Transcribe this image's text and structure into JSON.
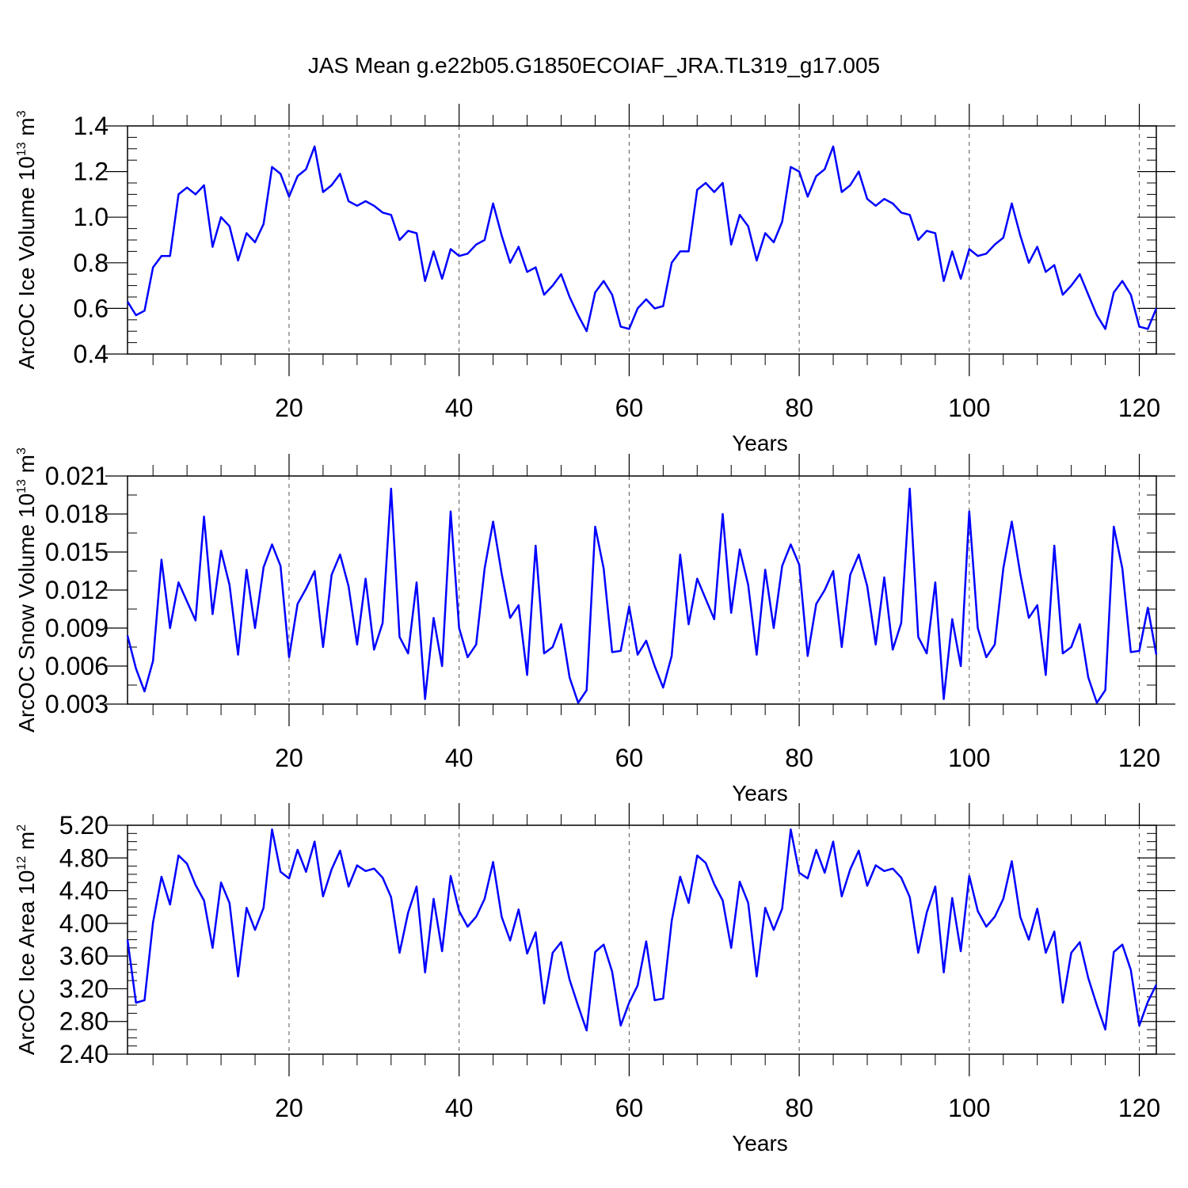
{
  "title": "JAS Mean g.e22b05.G1850ECOIAF_JRA.TL319_g17.005",
  "line_color": "#0000ff",
  "chart_data": [
    {
      "type": "line",
      "ylabel_main": "ArcOC Ice Volume 10",
      "ylabel_exp": "13",
      "ylabel_unit": " m",
      "ylabel_unit_exp": "3",
      "xlabel": "Years",
      "xlim": [
        1,
        122
      ],
      "ylim": [
        0.4,
        1.4
      ],
      "x_ticks": [
        20,
        40,
        60,
        80,
        100,
        120
      ],
      "x_tick_labels": [
        "20",
        "40",
        "60",
        "80",
        "100",
        "120"
      ],
      "y_ticks": [
        0.4,
        0.6,
        0.8,
        1.0,
        1.2,
        1.4
      ],
      "y_tick_labels": [
        "0.4",
        "0.6",
        "0.8",
        "1.0",
        "1.2",
        "1.4"
      ],
      "x_minor_step": 4,
      "y_minor_step": 0.05,
      "dashed_gridlines_x": [
        20,
        40,
        60,
        80,
        100,
        120
      ],
      "values": [
        0.63,
        0.57,
        0.59,
        0.78,
        0.83,
        0.83,
        1.1,
        1.13,
        1.1,
        1.14,
        0.87,
        1.0,
        0.96,
        0.81,
        0.93,
        0.89,
        0.97,
        1.22,
        1.19,
        1.09,
        1.18,
        1.21,
        1.31,
        1.11,
        1.14,
        1.19,
        1.07,
        1.05,
        1.07,
        1.05,
        1.02,
        1.01,
        0.9,
        0.94,
        0.93,
        0.72,
        0.85,
        0.73,
        0.86,
        0.83,
        0.84,
        0.88,
        0.9,
        1.06,
        0.92,
        0.8,
        0.87,
        0.76,
        0.78,
        0.66,
        0.7,
        0.75,
        0.65,
        0.57,
        0.5,
        0.67,
        0.72,
        0.66,
        0.52,
        0.51,
        0.6,
        0.64,
        0.6,
        0.61,
        0.8,
        0.85,
        0.85,
        1.12,
        1.15,
        1.11,
        1.15,
        0.88,
        1.01,
        0.96,
        0.81,
        0.93,
        0.89,
        0.98,
        1.22,
        1.2,
        1.09,
        1.18,
        1.21,
        1.31,
        1.11,
        1.14,
        1.2,
        1.08,
        1.05,
        1.08,
        1.06,
        1.02,
        1.01,
        0.9,
        0.94,
        0.93,
        0.72,
        0.85,
        0.73,
        0.86,
        0.83,
        0.84,
        0.88,
        0.91,
        1.06,
        0.92,
        0.8,
        0.87,
        0.76,
        0.79,
        0.66,
        0.7,
        0.75,
        0.66,
        0.57,
        0.51,
        0.67,
        0.72,
        0.66,
        0.52,
        0.51,
        0.6
      ]
    },
    {
      "type": "line",
      "ylabel_main": "ArcOC Snow Volume 10",
      "ylabel_exp": "13",
      "ylabel_unit": " m",
      "ylabel_unit_exp": "3",
      "xlabel": "Years",
      "xlim": [
        1,
        122
      ],
      "ylim": [
        0.003,
        0.021
      ],
      "x_ticks": [
        20,
        40,
        60,
        80,
        100,
        120
      ],
      "x_tick_labels": [
        "20",
        "40",
        "60",
        "80",
        "100",
        "120"
      ],
      "y_ticks": [
        0.003,
        0.006,
        0.009,
        0.012,
        0.015,
        0.018,
        0.021
      ],
      "y_tick_labels": [
        "0.003",
        "0.006",
        "0.009",
        "0.012",
        "0.015",
        "0.018",
        "0.021"
      ],
      "x_minor_step": 4,
      "y_minor_step": 0.0015,
      "dashed_gridlines_x": [
        20,
        40,
        60,
        80,
        100,
        120
      ],
      "values": [
        0.0084,
        0.0058,
        0.004,
        0.0064,
        0.0144,
        0.009,
        0.0126,
        0.0111,
        0.0096,
        0.0178,
        0.0101,
        0.0151,
        0.0124,
        0.0069,
        0.0136,
        0.009,
        0.0138,
        0.0156,
        0.0139,
        0.0067,
        0.0109,
        0.0121,
        0.0135,
        0.0075,
        0.0132,
        0.0148,
        0.0123,
        0.0077,
        0.0129,
        0.0073,
        0.0094,
        0.02,
        0.0083,
        0.007,
        0.0126,
        0.0034,
        0.0098,
        0.006,
        0.0182,
        0.009,
        0.0067,
        0.0077,
        0.0137,
        0.0174,
        0.0133,
        0.0098,
        0.0108,
        0.0053,
        0.0155,
        0.007,
        0.0075,
        0.0093,
        0.0051,
        0.0031,
        0.0041,
        0.017,
        0.0137,
        0.0071,
        0.0072,
        0.0107,
        0.0069,
        0.008,
        0.006,
        0.0043,
        0.0068,
        0.0148,
        0.0093,
        0.0129,
        0.0113,
        0.0097,
        0.018,
        0.0102,
        0.0152,
        0.0124,
        0.0069,
        0.0136,
        0.009,
        0.0139,
        0.0156,
        0.014,
        0.0068,
        0.0109,
        0.012,
        0.0135,
        0.0075,
        0.0132,
        0.0148,
        0.0123,
        0.0077,
        0.013,
        0.0073,
        0.0094,
        0.02,
        0.0083,
        0.007,
        0.0126,
        0.0034,
        0.0097,
        0.006,
        0.0182,
        0.009,
        0.0067,
        0.0077,
        0.0137,
        0.0174,
        0.0133,
        0.0098,
        0.0108,
        0.0053,
        0.0155,
        0.007,
        0.0075,
        0.0093,
        0.0051,
        0.0031,
        0.0041,
        0.017,
        0.0137,
        0.0071,
        0.0072,
        0.0106,
        0.0069
      ]
    },
    {
      "type": "line",
      "ylabel_main": "ArcOC Ice Area 10",
      "ylabel_exp": "12",
      "ylabel_unit": " m",
      "ylabel_unit_exp": "2",
      "xlabel": "Years",
      "xlim": [
        1,
        122
      ],
      "ylim": [
        2.4,
        5.2
      ],
      "x_ticks": [
        20,
        40,
        60,
        80,
        100,
        120
      ],
      "x_tick_labels": [
        "20",
        "40",
        "60",
        "80",
        "100",
        "120"
      ],
      "y_ticks": [
        2.4,
        2.8,
        3.2,
        3.6,
        4.0,
        4.4,
        4.8,
        5.2
      ],
      "y_tick_labels": [
        "2.40",
        "2.80",
        "3.20",
        "3.60",
        "4.00",
        "4.40",
        "4.80",
        "5.20"
      ],
      "x_minor_step": 4,
      "y_minor_step": 0.1,
      "dashed_gridlines_x": [
        20,
        40,
        60,
        80,
        100,
        120
      ],
      "values": [
        3.8,
        3.03,
        3.06,
        4.01,
        4.57,
        4.23,
        4.83,
        4.73,
        4.47,
        4.28,
        3.7,
        4.5,
        4.25,
        3.35,
        4.19,
        3.92,
        4.19,
        5.15,
        4.63,
        4.55,
        4.9,
        4.63,
        5.0,
        4.33,
        4.66,
        4.89,
        4.45,
        4.71,
        4.64,
        4.67,
        4.56,
        4.32,
        3.64,
        4.13,
        4.45,
        3.4,
        4.3,
        3.66,
        4.58,
        4.15,
        3.96,
        4.08,
        4.3,
        4.75,
        4.08,
        3.79,
        4.17,
        3.63,
        3.89,
        3.02,
        3.64,
        3.77,
        3.31,
        2.99,
        2.69,
        3.65,
        3.74,
        3.41,
        2.75,
        3.03,
        3.24,
        3.78,
        3.06,
        3.08,
        4.03,
        4.57,
        4.25,
        4.83,
        4.74,
        4.48,
        4.28,
        3.7,
        4.51,
        4.25,
        3.35,
        4.19,
        3.92,
        4.18,
        5.15,
        4.62,
        4.55,
        4.9,
        4.62,
        5.0,
        4.33,
        4.66,
        4.89,
        4.46,
        4.71,
        4.64,
        4.67,
        4.56,
        4.32,
        3.64,
        4.13,
        4.45,
        3.4,
        4.31,
        3.66,
        4.58,
        4.15,
        3.96,
        4.08,
        4.3,
        4.76,
        4.08,
        3.8,
        4.18,
        3.64,
        3.9,
        3.03,
        3.64,
        3.77,
        3.33,
        3.0,
        2.7,
        3.65,
        3.74,
        3.43,
        2.75,
        3.04,
        3.25
      ]
    }
  ]
}
